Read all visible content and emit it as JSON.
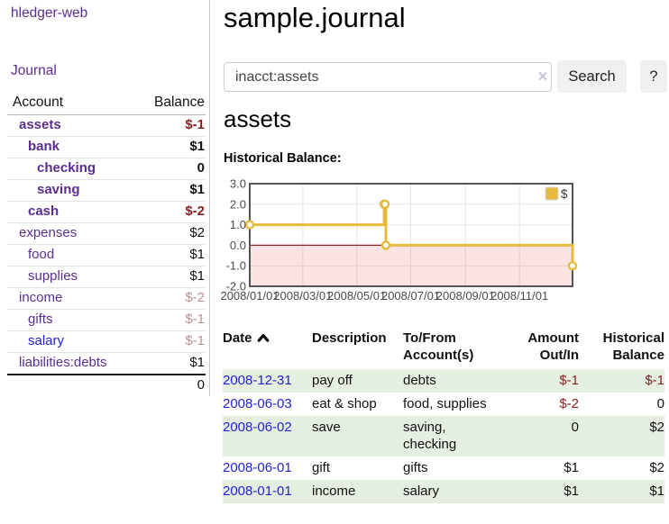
{
  "colors": {
    "link_purple": "#5c2d91",
    "link_blue": "#2323d3",
    "negative_red": "#8b1e1e",
    "negative_faded": "#c08f8f",
    "row_stripe_green": "#e4efe2",
    "button_gray": "#f0f0f0"
  },
  "sidebar": {
    "logo": "hledger-web",
    "nav_journal": "Journal",
    "accounts_table": {
      "col_account": "Account",
      "col_balance": "Balance",
      "rows": [
        {
          "name": "assets",
          "indent": 1,
          "bold": true,
          "balance": "$-1",
          "balance_class": "b-strong-neg"
        },
        {
          "name": "bank",
          "indent": 2,
          "bold": true,
          "balance": "$1",
          "balance_class": "b-strong"
        },
        {
          "name": "checking",
          "indent": 3,
          "bold": true,
          "balance": "0",
          "balance_class": "b-strong"
        },
        {
          "name": "saving",
          "indent": 3,
          "bold": true,
          "balance": "$1",
          "balance_class": "b-strong"
        },
        {
          "name": "cash",
          "indent": 2,
          "bold": true,
          "balance": "$-2",
          "balance_class": "b-strong-neg"
        },
        {
          "name": "expenses",
          "indent": 1,
          "bold": false,
          "balance": "$2",
          "balance_class": "b-plain"
        },
        {
          "name": "food",
          "indent": 2,
          "bold": false,
          "balance": "$1",
          "balance_class": "b-plain"
        },
        {
          "name": "supplies",
          "indent": 2,
          "bold": false,
          "balance": "$1",
          "balance_class": "b-plain"
        },
        {
          "name": "income",
          "indent": 1,
          "bold": false,
          "balance": "$-2",
          "balance_class": "b-faded-neg"
        },
        {
          "name": "gifts",
          "indent": 2,
          "bold": false,
          "balance": "$-1",
          "balance_class": "b-faded-neg"
        },
        {
          "name": "salary",
          "indent": 2,
          "bold": false,
          "balance": "$-1",
          "balance_class": "b-faded-neg",
          "link": "blue"
        },
        {
          "name": "liabilities:debts",
          "indent": 1,
          "bold": false,
          "balance": "$1",
          "balance_class": "b-plain"
        }
      ],
      "total": "0"
    }
  },
  "header": {
    "title": "sample.journal"
  },
  "search": {
    "value": "inacct:assets",
    "clear_icon": "×",
    "button": "Search",
    "help_button": "?"
  },
  "account_page": {
    "heading": "assets",
    "chart_label": "Historical Balance:"
  },
  "chart_data": {
    "type": "line",
    "step": true,
    "title": "Historical Balance:",
    "series": [
      {
        "name": "$",
        "color": "#e6ba3c",
        "points": [
          [
            "2008-01-01",
            1
          ],
          [
            "2008-06-01",
            2
          ],
          [
            "2008-06-02",
            2
          ],
          [
            "2008-06-03",
            0
          ],
          [
            "2008-12-31",
            -1
          ]
        ]
      }
    ],
    "xlim": [
      "2008-01-01",
      "2008-12-31"
    ],
    "ylim": [
      -2,
      3
    ],
    "x_ticks": [
      "2008/01/01",
      "2008/03/01",
      "2008/05/01",
      "2008/07/01",
      "2008/09/01",
      "2008/11/01"
    ],
    "y_ticks": [
      3.0,
      2.0,
      1.0,
      0.0,
      -1.0,
      -2.0
    ],
    "legend_position": "top-right",
    "grid": true,
    "zero_line_color": "#8f2323",
    "negative_region_color": "rgba(220,60,60,0.14)",
    "frame_color": "#545454",
    "grid_color": "#e6e6e6",
    "tick_color": "#4a4a4a"
  },
  "register": {
    "columns": [
      "Date",
      "Description",
      "To/From Account(s)",
      "Amount Out/In",
      "Historical Balance"
    ],
    "rows": [
      {
        "date": "2008-12-31",
        "description": "pay off",
        "accounts": [
          "debts"
        ],
        "amount": "$-1",
        "amount_neg": true,
        "balance": "$-1",
        "balance_neg": true
      },
      {
        "date": "2008-06-03",
        "description": "eat & shop",
        "accounts": [
          "food, supplies"
        ],
        "amount": "$-2",
        "amount_neg": true,
        "balance": "0",
        "balance_neg": false
      },
      {
        "date": "2008-06-02",
        "description": "save",
        "accounts": [
          "saving,",
          "checking"
        ],
        "amount": "0",
        "amount_neg": false,
        "balance": "$2",
        "balance_neg": false
      },
      {
        "date": "2008-06-01",
        "description": "gift",
        "accounts": [
          "gifts"
        ],
        "amount": "$1",
        "amount_neg": false,
        "balance": "$2",
        "balance_neg": false
      },
      {
        "date": "2008-01-01",
        "description": "income",
        "accounts": [
          "salary"
        ],
        "amount": "$1",
        "amount_neg": false,
        "balance": "$1",
        "balance_neg": false
      }
    ]
  }
}
